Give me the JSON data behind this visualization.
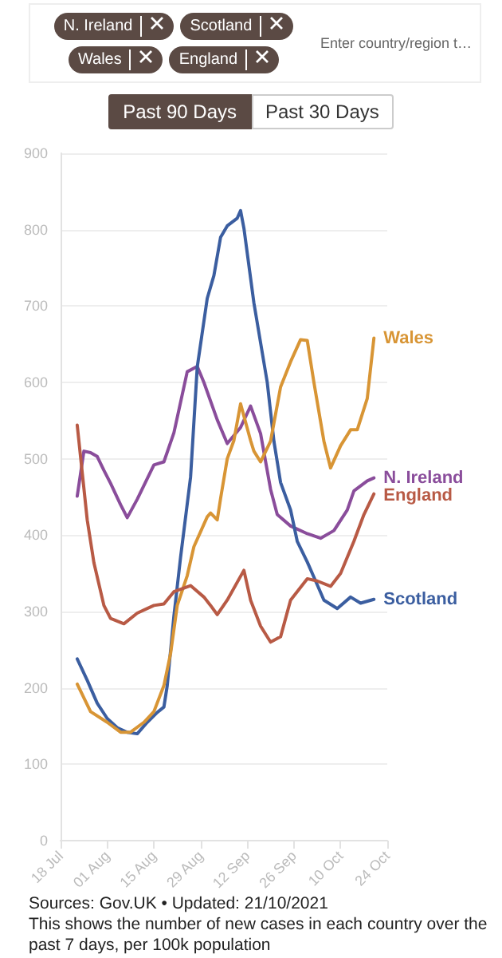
{
  "chart_data": {
    "type": "line",
    "xlim": [
      "2021-07-18",
      "2021-10-24"
    ],
    "xticks": [
      {
        "value": "2021-07-18",
        "label": "18 Jul"
      },
      {
        "value": "2021-08-01",
        "label": "01 Aug"
      },
      {
        "value": "2021-08-15",
        "label": "15 Aug"
      },
      {
        "value": "2021-08-29",
        "label": "29 Aug"
      },
      {
        "value": "2021-09-12",
        "label": "12 Sep"
      },
      {
        "value": "2021-09-26",
        "label": "26 Sep"
      },
      {
        "value": "2021-10-10",
        "label": "10 Oct"
      },
      {
        "value": "2021-10-24",
        "label": "24 Oct"
      }
    ],
    "ylim": [
      0,
      900
    ],
    "yticks": [
      0,
      100,
      200,
      300,
      400,
      500,
      600,
      700,
      800,
      900
    ],
    "grid": "y",
    "marker": "none",
    "line_style": "solid",
    "series": [
      {
        "name": "N. Ireland",
        "color": "#8a4d9b",
        "x": [
          "2021-07-23",
          "2021-07-25",
          "2021-07-27",
          "2021-07-29",
          "2021-07-31",
          "2021-08-02",
          "2021-08-05",
          "2021-08-07",
          "2021-08-10",
          "2021-08-15",
          "2021-08-18",
          "2021-08-21",
          "2021-08-25",
          "2021-08-28",
          "2021-08-30",
          "2021-09-03",
          "2021-09-06",
          "2021-09-10",
          "2021-09-13",
          "2021-09-16",
          "2021-09-19",
          "2021-09-21",
          "2021-09-25",
          "2021-09-30",
          "2021-10-04",
          "2021-10-08",
          "2021-10-12",
          "2021-10-14",
          "2021-10-18",
          "2021-10-20"
        ],
        "values": [
          451,
          510,
          508,
          503,
          485,
          468,
          440,
          423,
          447,
          492,
          496,
          534,
          614,
          621,
          600,
          551,
          520,
          541,
          569,
          533,
          460,
          427,
          412,
          402,
          396,
          406,
          433,
          458,
          471,
          475
        ]
      },
      {
        "name": "Scotland",
        "color": "#3b5ea0",
        "x": [
          "2021-07-23",
          "2021-07-26",
          "2021-07-29",
          "2021-08-01",
          "2021-08-04",
          "2021-08-07",
          "2021-08-10",
          "2021-08-13",
          "2021-08-16",
          "2021-08-18",
          "2021-08-19",
          "2021-08-21",
          "2021-08-23",
          "2021-08-26",
          "2021-08-28",
          "2021-08-31",
          "2021-09-02",
          "2021-09-04",
          "2021-09-06",
          "2021-09-09",
          "2021-09-10",
          "2021-09-11",
          "2021-09-14",
          "2021-09-18",
          "2021-09-20",
          "2021-09-22",
          "2021-09-25",
          "2021-09-27",
          "2021-09-30",
          "2021-10-03",
          "2021-10-05",
          "2021-10-09",
          "2021-10-13",
          "2021-10-16",
          "2021-10-20"
        ],
        "values": [
          238,
          210,
          180,
          160,
          148,
          142,
          140,
          155,
          168,
          175,
          203,
          294,
          371,
          476,
          620,
          710,
          740,
          790,
          805,
          815,
          825,
          802,
          704,
          600,
          523,
          469,
          433,
          392,
          365,
          335,
          315,
          304,
          319,
          311,
          316
        ]
      },
      {
        "name": "Wales",
        "color": "#d89535",
        "x": [
          "2021-07-23",
          "2021-07-27",
          "2021-08-01",
          "2021-08-05",
          "2021-08-08",
          "2021-08-12",
          "2021-08-15",
          "2021-08-18",
          "2021-08-20",
          "2021-08-22",
          "2021-08-25",
          "2021-08-27",
          "2021-08-31",
          "2021-09-01",
          "2021-09-03",
          "2021-09-04",
          "2021-09-06",
          "2021-09-08",
          "2021-09-10",
          "2021-09-13",
          "2021-09-14",
          "2021-09-16",
          "2021-09-19",
          "2021-09-22",
          "2021-09-25",
          "2021-09-28",
          "2021-09-30",
          "2021-10-02",
          "2021-10-05",
          "2021-10-07",
          "2021-10-10",
          "2021-10-13",
          "2021-10-15",
          "2021-10-18",
          "2021-10-20"
        ],
        "values": [
          205,
          169,
          155,
          142,
          142,
          155,
          169,
          203,
          245,
          308,
          347,
          385,
          424,
          429,
          420,
          448,
          500,
          524,
          572,
          524,
          510,
          496,
          523,
          594,
          627,
          656,
          655,
          600,
          523,
          488,
          517,
          538,
          538,
          579,
          658
        ]
      },
      {
        "name": "England",
        "color": "#b85a45",
        "x": [
          "2021-07-23",
          "2021-07-26",
          "2021-07-28",
          "2021-07-31",
          "2021-08-02",
          "2021-08-06",
          "2021-08-10",
          "2021-08-15",
          "2021-08-18",
          "2021-08-21",
          "2021-08-26",
          "2021-08-30",
          "2021-09-01",
          "2021-09-03",
          "2021-09-06",
          "2021-09-11",
          "2021-09-13",
          "2021-09-16",
          "2021-09-19",
          "2021-09-22",
          "2021-09-25",
          "2021-09-30",
          "2021-10-03",
          "2021-10-07",
          "2021-10-10",
          "2021-10-14",
          "2021-10-17",
          "2021-10-20"
        ],
        "values": [
          544,
          420,
          364,
          308,
          291,
          284,
          298,
          308,
          310,
          326,
          334,
          319,
          308,
          296,
          315,
          354,
          315,
          281,
          260,
          267,
          315,
          343,
          340,
          333,
          350,
          392,
          427,
          454
        ]
      }
    ],
    "annotations": [
      "Enter country/region t…",
      "Past 90 Days",
      "Past 30 Days",
      "Sources: Gov.UK • Updated: 21/10/2021",
      "This shows the number of new cases in each country over the past 7 days, per 100k population"
    ]
  }
}
